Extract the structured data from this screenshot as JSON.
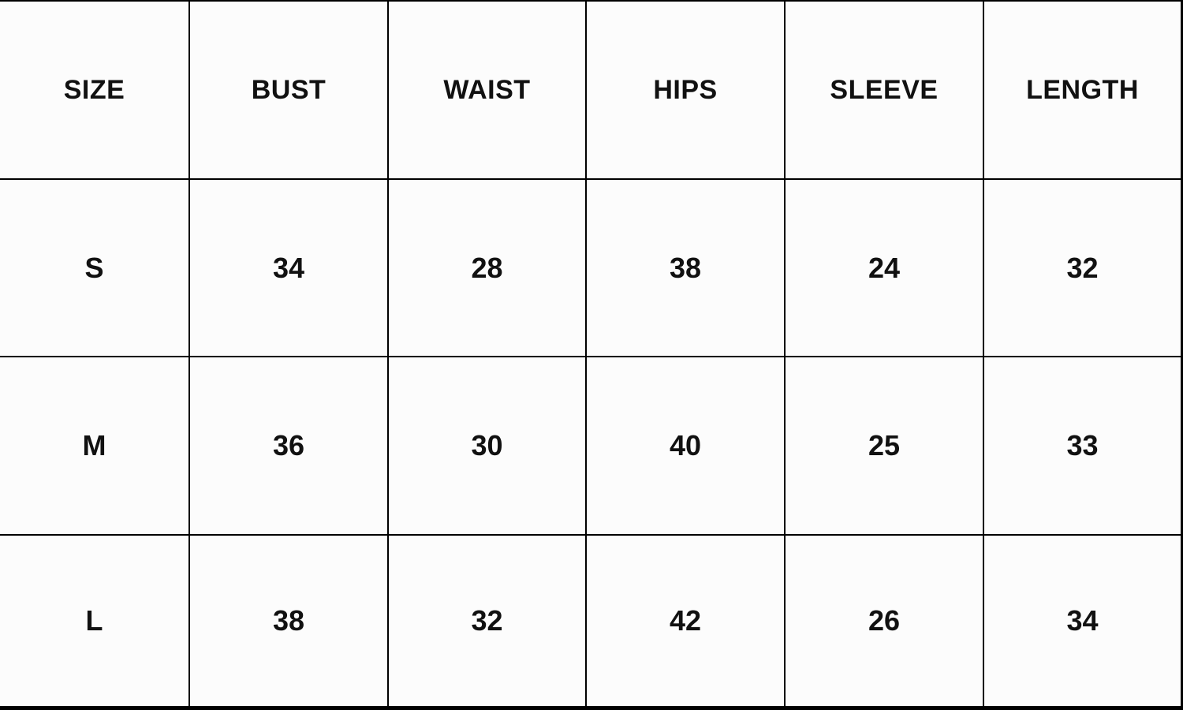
{
  "colors": {
    "background": "#fcfcfc",
    "grid_line": "#000000",
    "text": "#111111"
  },
  "header": {
    "cells": [
      "SIZE",
      "BUST",
      "WAIST",
      "HIPS",
      "SLEEVE",
      "LENGTH"
    ]
  },
  "rows": [
    {
      "cells": [
        "S",
        "34",
        "28",
        "38",
        "24",
        "32"
      ]
    },
    {
      "cells": [
        "M",
        "36",
        "30",
        "40",
        "25",
        "33"
      ]
    },
    {
      "cells": [
        "L",
        "38",
        "32",
        "42",
        "26",
        "34"
      ]
    }
  ],
  "chart_data": {
    "type": "table",
    "columns": [
      "SIZE",
      "BUST",
      "WAIST",
      "HIPS",
      "SLEEVE",
      "LENGTH"
    ],
    "rows": [
      [
        "S",
        34,
        28,
        38,
        24,
        32
      ],
      [
        "M",
        36,
        30,
        40,
        25,
        33
      ],
      [
        "L",
        38,
        32,
        42,
        26,
        34
      ]
    ]
  }
}
